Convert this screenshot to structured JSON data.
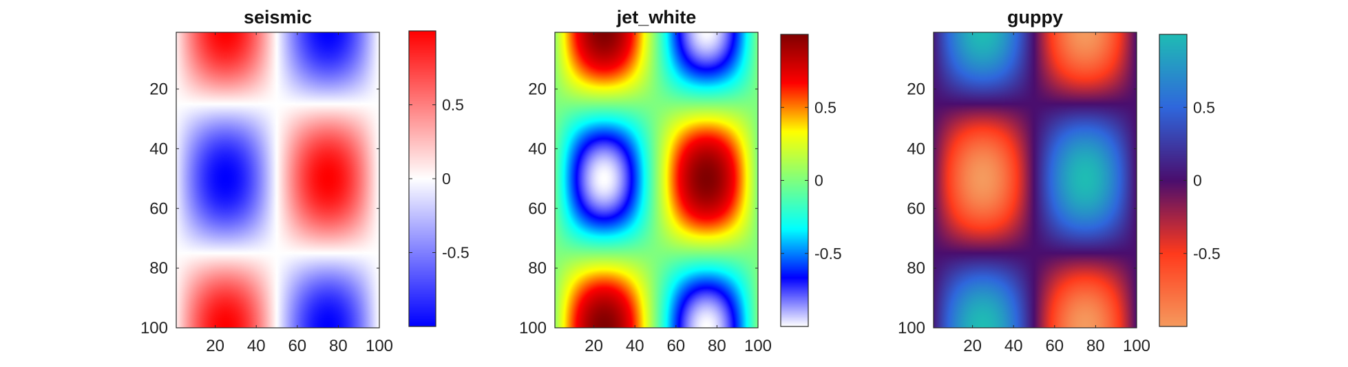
{
  "chart_data": [
    {
      "type": "heatmap",
      "title": "seismic",
      "colormap": "seismic",
      "x_ticks": [
        20,
        40,
        60,
        80,
        100
      ],
      "y_ticks": [
        20,
        40,
        60,
        80,
        100
      ],
      "xlim": [
        1,
        100
      ],
      "ylim": [
        1,
        100
      ],
      "y_direction": "reverse",
      "function": "sin(2*pi*x/100) * cos(2*pi*y/100)",
      "colorbar": {
        "ticks": [
          0.5,
          0,
          -0.5
        ],
        "tick_labels": [
          "0.5",
          "0",
          "-0.5"
        ],
        "range": [
          -1,
          1
        ]
      },
      "colorbar_stops": [
        "#0000ff",
        "#ffffff",
        "#ff0000"
      ]
    },
    {
      "type": "heatmap",
      "title": "jet_white",
      "colormap": "jet_white",
      "x_ticks": [
        20,
        40,
        60,
        80,
        100
      ],
      "y_ticks": [
        20,
        40,
        60,
        80,
        100
      ],
      "xlim": [
        1,
        100
      ],
      "ylim": [
        1,
        100
      ],
      "y_direction": "reverse",
      "function": "sin(2*pi*x/100) * cos(2*pi*y/100)",
      "colorbar": {
        "ticks": [
          0.5,
          0,
          -0.5
        ],
        "tick_labels": [
          "0.5",
          "0",
          "-0.5"
        ],
        "range": [
          -1,
          1
        ]
      },
      "colorbar_stops": [
        "#ffffff",
        "#0000ff",
        "#00ffff",
        "#7fff7f",
        "#ffff00",
        "#ff0000",
        "#800000"
      ]
    },
    {
      "type": "heatmap",
      "title": "guppy",
      "colormap": "guppy",
      "x_ticks": [
        20,
        40,
        60,
        80,
        100
      ],
      "y_ticks": [
        20,
        40,
        60,
        80,
        100
      ],
      "xlim": [
        1,
        100
      ],
      "ylim": [
        1,
        100
      ],
      "y_direction": "reverse",
      "function": "sin(2*pi*x/100) * cos(2*pi*y/100)",
      "colorbar": {
        "ticks": [
          0.5,
          0,
          -0.5
        ],
        "tick_labels": [
          "0.5",
          "0",
          "-0.5"
        ],
        "range": [
          -1,
          1
        ]
      },
      "colorbar_stops": [
        "#f59a5e",
        "#ff3a1c",
        "#4a0e6e",
        "#2f67dc",
        "#1fbcb4"
      ]
    }
  ]
}
